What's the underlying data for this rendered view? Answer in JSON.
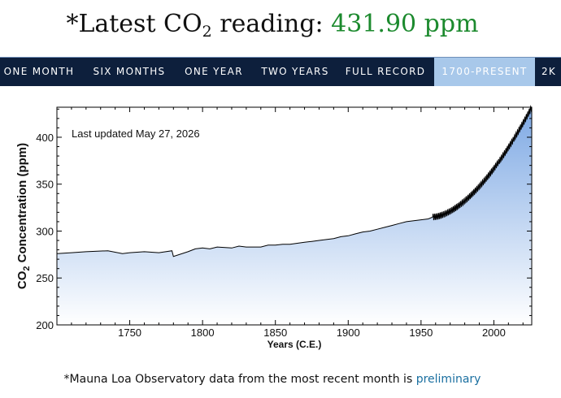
{
  "header": {
    "prefix": "*Latest CO",
    "subscript": "2",
    "middle": " reading: ",
    "value": "431.90 ppm",
    "value_color": "#1c8a2e"
  },
  "nav": {
    "tabs": [
      {
        "label": "ONE MONTH",
        "active": false
      },
      {
        "label": "SIX MONTHS",
        "active": false
      },
      {
        "label": "ONE YEAR",
        "active": false
      },
      {
        "label": "TWO YEARS",
        "active": false
      },
      {
        "label": "FULL RECORD",
        "active": false
      },
      {
        "label": "1700-PRESENT",
        "active": true
      },
      {
        "label": "2K",
        "active": false
      }
    ],
    "background": "#0d1f3c",
    "active_background": "#a8c8ea"
  },
  "chart_data": {
    "type": "area",
    "annotation": "Last updated May 27, 2026",
    "ylabel_main": "CO",
    "ylabel_sub": "2",
    "ylabel_rest": " Concentration (ppm)",
    "xlabel": "Years (C.E.)",
    "xlim": [
      1700,
      2026
    ],
    "ylim": [
      200,
      432
    ],
    "xticks": [
      1750,
      1800,
      1850,
      1900,
      1950,
      2000
    ],
    "yticks": [
      200,
      250,
      300,
      350,
      400
    ],
    "fill_top_color": "#7ea9e4",
    "fill_bottom_color": "#ffffff",
    "line_color": "#000000",
    "series": [
      {
        "x": [
          1700,
          1710,
          1720,
          1735,
          1745,
          1750,
          1760,
          1770,
          1779,
          1780,
          1790,
          1795,
          1800,
          1805,
          1810,
          1820,
          1825,
          1830,
          1840,
          1845,
          1850,
          1855,
          1860,
          1865,
          1870,
          1875,
          1880,
          1885,
          1890,
          1895,
          1900,
          1905,
          1910,
          1915,
          1920,
          1925,
          1930,
          1935,
          1940,
          1945,
          1950,
          1955,
          1958
        ],
        "y": [
          276,
          277,
          278,
          279,
          276,
          277,
          278,
          277,
          279,
          273,
          278,
          281,
          282,
          281,
          283,
          282,
          284,
          283,
          283,
          285,
          285,
          286,
          286,
          287,
          288,
          289,
          290,
          291,
          292,
          294,
          295,
          297,
          299,
          300,
          302,
          304,
          306,
          308,
          310,
          311,
          312,
          313,
          315
        ]
      }
    ],
    "modern": {
      "start_year": 1958,
      "end_year": 2026,
      "start_ppm": 315,
      "end_ppm": 431.9,
      "seasonal_amplitude": 3.2
    }
  },
  "footnote": {
    "text": "*Mauna Loa Observatory data from the most recent month is ",
    "link": "preliminary"
  }
}
